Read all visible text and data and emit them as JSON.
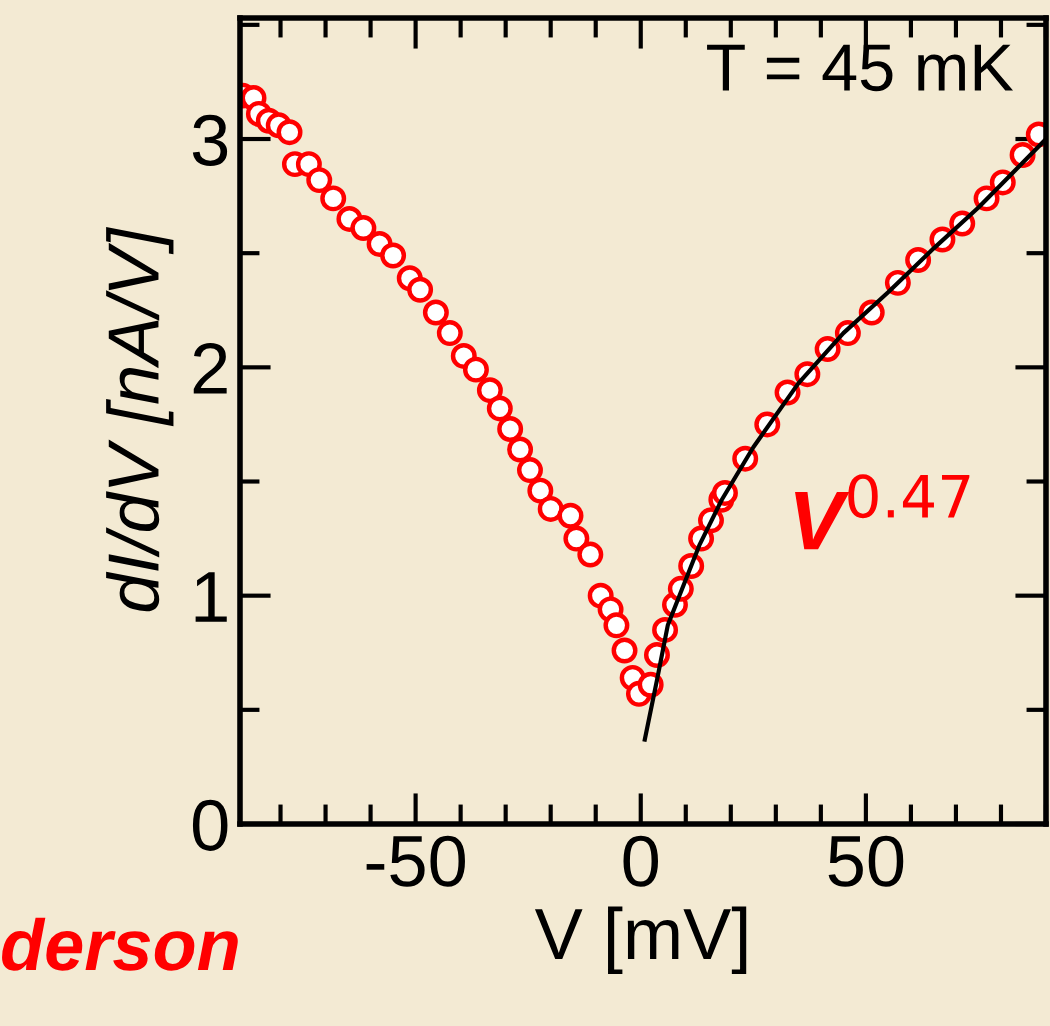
{
  "chart_data": {
    "type": "scatter",
    "xlabel": "V [mV]",
    "ylabel": "dI/dV [nA/V]",
    "xlim": [
      -89,
      90
    ],
    "ylim": [
      0,
      3.53
    ],
    "xticks": [
      -50,
      0,
      50
    ],
    "yticks": [
      0,
      1,
      2,
      3
    ],
    "grid": false,
    "annotations": [
      "T = 45 mK",
      "V$^{0.47}$",
      "derson"
    ],
    "series": [
      {
        "marker": "circle",
        "color": "#ff0000",
        "x": [
          -88.4,
          -86,
          -84.8,
          -82.6,
          -80.4,
          -78,
          -76.8,
          -73.7,
          -71.4,
          -68.3,
          -64.7,
          -61.6,
          -58,
          -55,
          -51.3,
          -49,
          -45.5,
          -42.4,
          -39.3,
          -36.6,
          -33.5,
          -31.3,
          -29,
          -26.8,
          -24.6,
          -22.3,
          -20,
          -15.6,
          -14.3,
          -11.2,
          -8.9,
          -6.7,
          -5.4,
          -3.6,
          -1.8,
          -0.4,
          2.2,
          3.6,
          5.4,
          7.6,
          8.9,
          11.2,
          13.4,
          15.6,
          17.9,
          18.7,
          23.2,
          28.1,
          32.6,
          37,
          41.5,
          46,
          51.3,
          57.1,
          61.6,
          67,
          71.4,
          76.8,
          80.4,
          84.8,
          88.4
        ],
        "values": [
          3.19,
          3.18,
          3.11,
          3.08,
          3.06,
          3.03,
          2.89,
          2.89,
          2.82,
          2.74,
          2.65,
          2.61,
          2.54,
          2.49,
          2.39,
          2.34,
          2.24,
          2.15,
          2.05,
          1.99,
          1.9,
          1.82,
          1.73,
          1.64,
          1.55,
          1.46,
          1.38,
          1.35,
          1.25,
          1.18,
          1.0,
          0.94,
          0.87,
          0.76,
          0.64,
          0.57,
          0.61,
          0.74,
          0.85,
          0.96,
          1.03,
          1.13,
          1.25,
          1.33,
          1.42,
          1.45,
          1.6,
          1.75,
          1.89,
          1.97,
          2.08,
          2.15,
          2.24,
          2.37,
          2.47,
          2.56,
          2.63,
          2.74,
          2.81,
          2.93,
          3.02
        ]
      },
      {
        "type": "line",
        "color": "#000000",
        "x": [
          0.9,
          3.6,
          6,
          9,
          13,
          18,
          25,
          35,
          45,
          55,
          65,
          75,
          90
        ],
        "values": [
          0.37,
          0.63,
          0.87,
          1.02,
          1.22,
          1.42,
          1.65,
          1.93,
          2.15,
          2.33,
          2.52,
          2.7,
          3.0
        ]
      }
    ]
  }
}
